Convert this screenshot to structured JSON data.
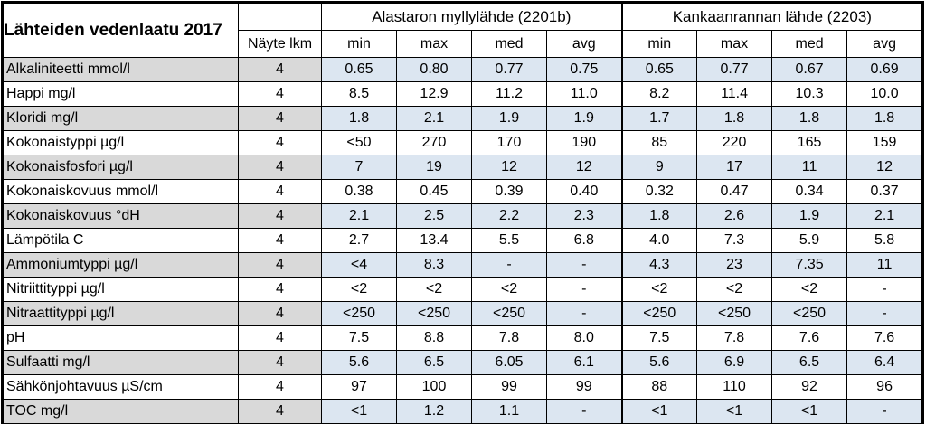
{
  "table": {
    "title": "Lähteiden vedenlaatu 2017",
    "count_header": "Näyte lkm",
    "sites": [
      "Alastaron myllylähde (2201b)",
      "Kankaanrannan lähde (2203)"
    ],
    "stat_headers": [
      "min",
      "max",
      "med",
      "avg",
      "min",
      "max",
      "med",
      "avg"
    ],
    "rows": [
      {
        "name": "Alkaliniteetti mmol/l",
        "count": "4",
        "values": [
          "0.65",
          "0.80",
          "0.77",
          "0.75",
          "0.65",
          "0.77",
          "0.67",
          "0.69"
        ]
      },
      {
        "name": "Happi mg/l",
        "count": "4",
        "values": [
          "8.5",
          "12.9",
          "11.2",
          "11.0",
          "8.2",
          "11.4",
          "10.3",
          "10.0"
        ]
      },
      {
        "name": "Kloridi mg/l",
        "count": "4",
        "values": [
          "1.8",
          "2.1",
          "1.9",
          "1.9",
          "1.7",
          "1.8",
          "1.8",
          "1.8"
        ]
      },
      {
        "name": "Kokonaistyppi µg/l",
        "count": "4",
        "values": [
          "<50",
          "270",
          "170",
          "190",
          "85",
          "220",
          "165",
          "159"
        ]
      },
      {
        "name": "Kokonaisfosfori µg/l",
        "count": "4",
        "values": [
          "7",
          "19",
          "12",
          "12",
          "9",
          "17",
          "11",
          "12"
        ]
      },
      {
        "name": "Kokonaiskovuus mmol/l",
        "count": "4",
        "values": [
          "0.38",
          "0.45",
          "0.39",
          "0.40",
          "0.32",
          "0.47",
          "0.34",
          "0.37"
        ]
      },
      {
        "name": "Kokonaiskovuus °dH",
        "count": "4",
        "values": [
          "2.1",
          "2.5",
          "2.2",
          "2.3",
          "1.8",
          "2.6",
          "1.9",
          "2.1"
        ]
      },
      {
        "name": "Lämpötila C",
        "count": "4",
        "values": [
          "2.7",
          "13.4",
          "5.5",
          "6.8",
          "4.0",
          "7.3",
          "5.9",
          "5.8"
        ]
      },
      {
        "name": "Ammoniumtyppi µg/l",
        "count": "4",
        "values": [
          "<4",
          "8.3",
          "-",
          "-",
          "4.3",
          "23",
          "7.35",
          "11"
        ]
      },
      {
        "name": "Nitriittityppi µg/l",
        "count": "4",
        "values": [
          "<2",
          "<2",
          "<2",
          "-",
          "<2",
          "<2",
          "<2",
          "-"
        ]
      },
      {
        "name": "Nitraattityppi µg/l",
        "count": "4",
        "values": [
          "<250",
          "<250",
          "<250",
          "-",
          "<250",
          "<250",
          "<250",
          "-"
        ]
      },
      {
        "name": "pH",
        "count": "4",
        "values": [
          "7.5",
          "8.8",
          "7.8",
          "8.0",
          "7.5",
          "7.8",
          "7.6",
          "7.6"
        ]
      },
      {
        "name": "Sulfaatti mg/l",
        "count": "4",
        "values": [
          "5.6",
          "6.5",
          "6.05",
          "6.1",
          "5.6",
          "6.9",
          "6.5",
          "6.4"
        ]
      },
      {
        "name": "Sähkönjohtavuus µS/cm",
        "count": "4",
        "values": [
          "97",
          "100",
          "99",
          "99",
          "88",
          "110",
          "92",
          "96"
        ]
      },
      {
        "name": "TOC mg/l",
        "count": "4",
        "values": [
          "<1",
          "1.2",
          "1.1",
          "-",
          "<1",
          "<1",
          "<1",
          "-"
        ]
      }
    ]
  },
  "colors": {
    "row_shade_values": "#dce6f1",
    "row_shade_labels": "#d9d9d9",
    "border": "#000000"
  }
}
